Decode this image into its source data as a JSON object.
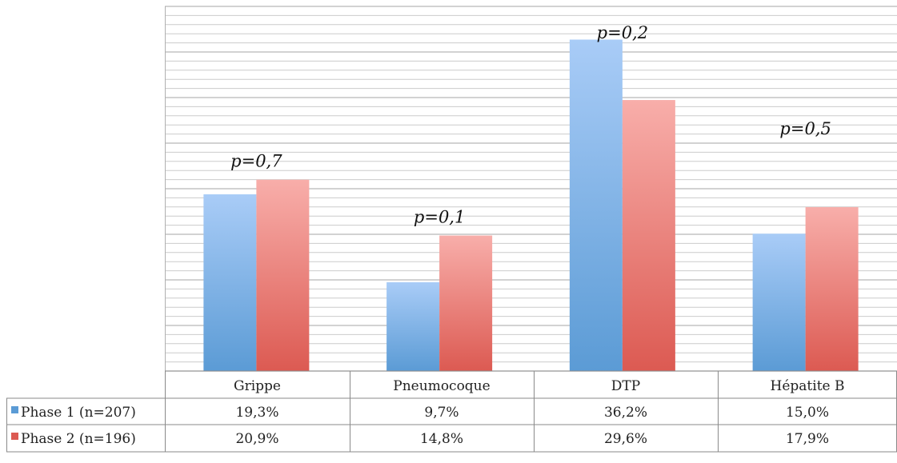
{
  "chart_data": {
    "type": "bar",
    "categories": [
      "Grippe",
      "Pneumocoque",
      "DTP",
      "Hépatite B"
    ],
    "series": [
      {
        "name": "Phase 1 (n=207)",
        "values": [
          19.3,
          9.7,
          36.2,
          15.0
        ],
        "labels": [
          "19,3%",
          "9,7%",
          "36,2%",
          "15,0%"
        ],
        "color": "#5b9bd5",
        "color_light": "#a9ccf7"
      },
      {
        "name": "Phase 2 (n=196)",
        "values": [
          20.9,
          14.8,
          29.6,
          17.9
        ],
        "labels": [
          "20,9%",
          "14,8%",
          "29,6%",
          "17,9%"
        ],
        "color": "#dc5a52",
        "color_light": "#f8aeaa"
      }
    ],
    "annotations": [
      "p=0,7",
      "p=0,1",
      "p=0,2",
      "p=0,5"
    ],
    "ylim": [
      0,
      40
    ],
    "grid": true,
    "data_table": true,
    "legend_position": "data-table-left"
  }
}
